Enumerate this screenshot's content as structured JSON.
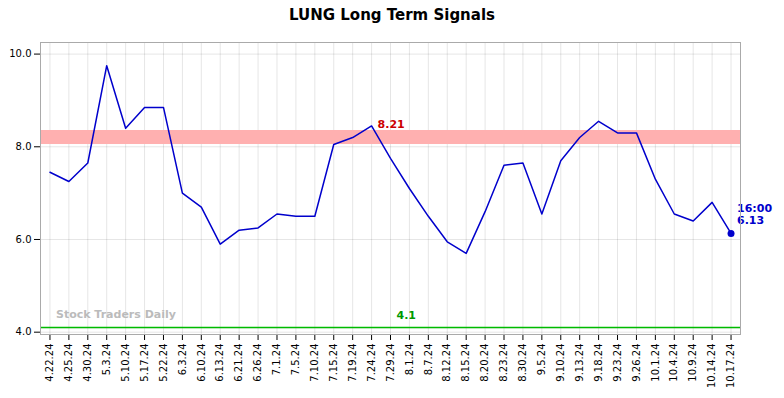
{
  "chart_data": {
    "type": "line",
    "title": "LUNG Long Term Signals",
    "categories": [
      "4.22.24",
      "4.25.24",
      "4.30.24",
      "5.3.24",
      "5.10.24",
      "5.17.24",
      "5.22.24",
      "6.3.24",
      "6.10.24",
      "6.13.24",
      "6.21.24",
      "6.26.24",
      "7.1.24",
      "7.5.24",
      "7.10.24",
      "7.15.24",
      "7.19.24",
      "7.24.24",
      "7.29.24",
      "8.1.24",
      "8.7.24",
      "8.12.24",
      "8.15.24",
      "8.20.24",
      "8.23.24",
      "8.30.24",
      "9.5.24",
      "9.10.24",
      "9.13.24",
      "9.18.24",
      "9.23.24",
      "9.26.24",
      "10.1.24",
      "10.4.24",
      "10.9.24",
      "10.14.24",
      "10.17.24"
    ],
    "values": [
      7.45,
      7.25,
      7.65,
      9.75,
      8.4,
      8.85,
      8.85,
      7.0,
      6.7,
      5.9,
      6.2,
      6.25,
      6.55,
      6.5,
      6.5,
      8.05,
      8.2,
      8.45,
      7.75,
      7.1,
      6.5,
      5.95,
      5.7,
      6.6,
      7.6,
      7.65,
      6.55,
      7.7,
      8.2,
      8.55,
      8.3,
      8.3,
      7.3,
      6.55,
      6.4,
      6.8,
      6.13
    ],
    "color": "#0000cc",
    "ylim": [
      3.95,
      10.25
    ],
    "yticks": [
      4,
      6,
      8,
      10
    ],
    "grid": true,
    "hlines": [
      {
        "y": 8.21,
        "color": "#ffb0b0"
      },
      {
        "y": 4.1,
        "color": "#444444"
      },
      {
        "y": 4.1,
        "color": "#00bb00"
      }
    ],
    "annotations": [
      {
        "text": "8.21",
        "x": "7.24.24",
        "y": 8.21,
        "color": "#cc0000"
      },
      {
        "text": "4.1",
        "x": "7.29.24",
        "y": 4.1,
        "color": "#009900"
      },
      {
        "text": "Stock Traders Daily",
        "x": "4.22.24",
        "y": 4.12,
        "color": "#bbbbbb"
      },
      {
        "text": "16:00",
        "x": "10.17.24",
        "y": 6.13,
        "color": "#0000cc"
      },
      {
        "text": "6.13",
        "x": "10.17.24",
        "y": 6.13,
        "color": "#0000cc"
      }
    ]
  }
}
